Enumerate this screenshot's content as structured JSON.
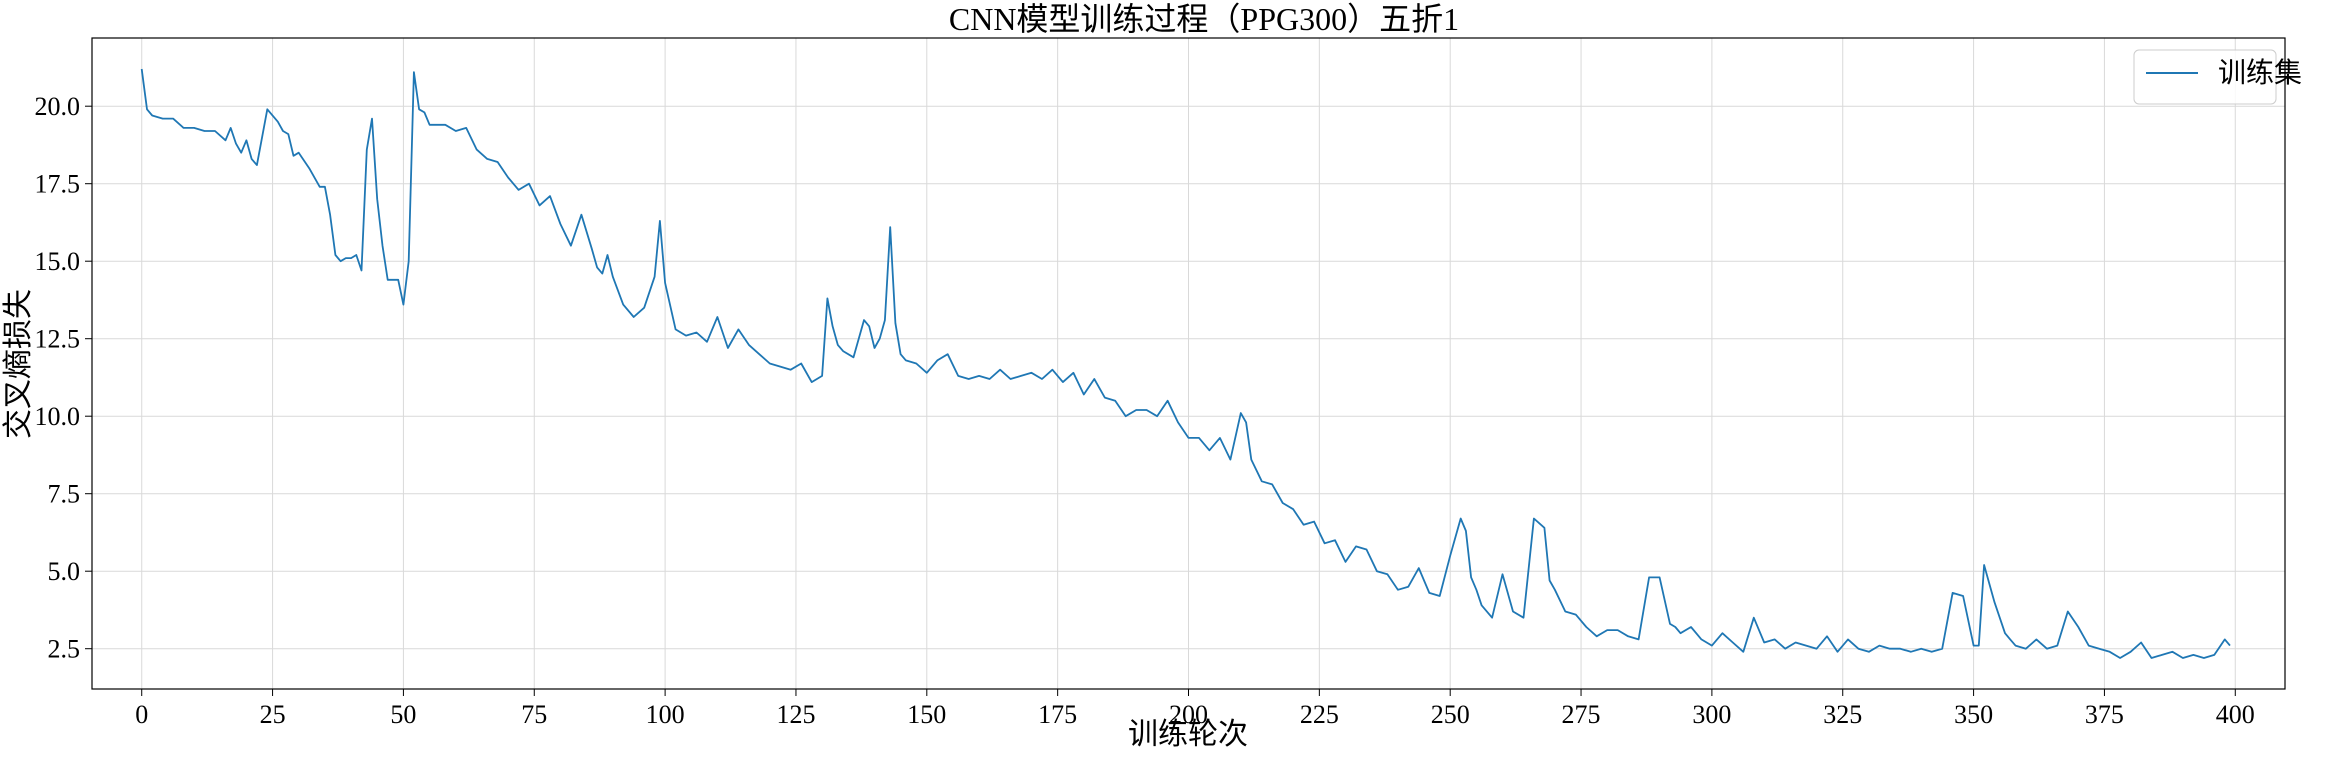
{
  "chart_data": {
    "type": "line",
    "title": "CNN模型训练过程（PPG300）五折1",
    "xlabel": "训练轮次",
    "ylabel": "交叉熵损失",
    "xlim": [
      -9.5,
      409.5
    ],
    "ylim": [
      1.2,
      22.2
    ],
    "xticks": [
      0,
      25,
      50,
      75,
      100,
      125,
      150,
      175,
      200,
      225,
      250,
      275,
      300,
      325,
      350,
      375,
      400
    ],
    "yticks": [
      2.5,
      5.0,
      7.5,
      10.0,
      12.5,
      15.0,
      17.5,
      20.0
    ],
    "ytick_labels": [
      "2.5",
      "5.0",
      "7.5",
      "10.0",
      "12.5",
      "15.0",
      "17.5",
      "20.0"
    ],
    "grid": true,
    "legend_position": "top-right",
    "colors": {
      "line": "#1f77b4",
      "grid": "#d9d9d9",
      "axis": "#000000"
    },
    "series": [
      {
        "name": "训练集",
        "x": [
          0,
          1,
          2,
          4,
          6,
          8,
          10,
          12,
          14,
          16,
          17,
          18,
          19,
          20,
          21,
          22,
          24,
          26,
          27,
          28,
          29,
          30,
          32,
          34,
          35,
          36,
          37,
          38,
          39,
          40,
          41,
          42,
          43,
          44,
          45,
          46,
          47,
          49,
          50,
          51,
          52,
          53,
          54,
          55,
          58,
          60,
          62,
          64,
          66,
          68,
          70,
          72,
          74,
          76,
          78,
          80,
          82,
          84,
          86,
          87,
          88,
          89,
          90,
          92,
          94,
          96,
          98,
          99,
          100,
          102,
          104,
          106,
          108,
          110,
          112,
          114,
          116,
          118,
          120,
          122,
          124,
          126,
          128,
          130,
          131,
          132,
          133,
          134,
          136,
          138,
          139,
          140,
          141,
          142,
          143,
          144,
          145,
          146,
          148,
          150,
          152,
          154,
          156,
          158,
          160,
          162,
          164,
          166,
          168,
          170,
          172,
          174,
          176,
          178,
          180,
          182,
          184,
          186,
          188,
          190,
          192,
          194,
          196,
          198,
          200,
          202,
          204,
          206,
          208,
          210,
          211,
          212,
          214,
          216,
          218,
          220,
          222,
          224,
          226,
          228,
          230,
          232,
          234,
          236,
          238,
          240,
          242,
          244,
          246,
          248,
          250,
          252,
          253,
          254,
          255,
          256,
          258,
          260,
          262,
          264,
          266,
          268,
          269,
          270,
          272,
          274,
          276,
          278,
          280,
          282,
          284,
          286,
          288,
          290,
          292,
          293,
          294,
          296,
          298,
          300,
          302,
          304,
          306,
          308,
          310,
          312,
          314,
          316,
          318,
          320,
          322,
          324,
          326,
          328,
          330,
          332,
          334,
          336,
          338,
          340,
          342,
          344,
          346,
          348,
          350,
          351,
          352,
          354,
          356,
          357,
          358,
          360,
          362,
          364,
          366,
          368,
          370,
          372,
          374,
          376,
          378,
          380,
          382,
          384,
          386,
          388,
          390,
          392,
          394,
          396,
          398,
          399
        ],
        "values": [
          21.2,
          19.9,
          19.7,
          19.6,
          19.6,
          19.3,
          19.3,
          19.2,
          19.2,
          18.9,
          19.3,
          18.8,
          18.5,
          18.9,
          18.3,
          18.1,
          19.9,
          19.5,
          19.2,
          19.1,
          18.4,
          18.5,
          18.0,
          17.4,
          17.4,
          16.5,
          15.2,
          15.0,
          15.1,
          15.1,
          15.2,
          14.7,
          18.6,
          19.6,
          17.0,
          15.5,
          14.4,
          14.4,
          13.6,
          15.0,
          21.1,
          19.9,
          19.8,
          19.4,
          19.4,
          19.2,
          19.3,
          18.6,
          18.3,
          18.2,
          17.7,
          17.3,
          17.5,
          16.8,
          17.1,
          16.2,
          15.5,
          16.5,
          15.4,
          14.8,
          14.6,
          15.2,
          14.5,
          13.6,
          13.2,
          13.5,
          14.5,
          16.3,
          14.3,
          12.8,
          12.6,
          12.7,
          12.4,
          13.2,
          12.2,
          12.8,
          12.3,
          12.0,
          11.7,
          11.6,
          11.5,
          11.7,
          11.1,
          11.3,
          13.8,
          12.9,
          12.3,
          12.1,
          11.9,
          13.1,
          12.9,
          12.2,
          12.5,
          13.1,
          16.1,
          13.0,
          12.0,
          11.8,
          11.7,
          11.4,
          11.8,
          12.0,
          11.3,
          11.2,
          11.3,
          11.2,
          11.5,
          11.2,
          11.3,
          11.4,
          11.2,
          11.5,
          11.1,
          11.4,
          10.7,
          11.2,
          10.6,
          10.5,
          10.0,
          10.2,
          10.2,
          10.0,
          10.5,
          9.8,
          9.3,
          9.3,
          8.9,
          9.3,
          8.6,
          10.1,
          9.8,
          8.6,
          7.9,
          7.8,
          7.2,
          7.0,
          6.5,
          6.6,
          5.9,
          6.0,
          5.3,
          5.8,
          5.7,
          5.0,
          4.9,
          4.4,
          4.5,
          5.1,
          4.3,
          4.2,
          5.5,
          6.7,
          6.3,
          4.8,
          4.4,
          3.9,
          3.5,
          4.9,
          3.7,
          3.5,
          6.7,
          6.4,
          4.7,
          4.4,
          3.7,
          3.6,
          3.2,
          2.9,
          3.1,
          3.1,
          2.9,
          2.8,
          4.8,
          4.8,
          3.3,
          3.2,
          3.0,
          3.2,
          2.8,
          2.6,
          3.0,
          2.7,
          2.4,
          3.5,
          2.7,
          2.8,
          2.5,
          2.7,
          2.6,
          2.5,
          2.9,
          2.4,
          2.8,
          2.5,
          2.4,
          2.6,
          2.5,
          2.5,
          2.4,
          2.5,
          2.4,
          2.5,
          4.3,
          4.2,
          2.6,
          2.6,
          5.2,
          4.0,
          3.0,
          2.8,
          2.6,
          2.5,
          2.8,
          2.5,
          2.6,
          3.7,
          3.2,
          2.6,
          2.5,
          2.4,
          2.2,
          2.4,
          2.7,
          2.2,
          2.3,
          2.4,
          2.2,
          2.3,
          2.2,
          2.3,
          2.8,
          2.6
        ]
      }
    ]
  }
}
